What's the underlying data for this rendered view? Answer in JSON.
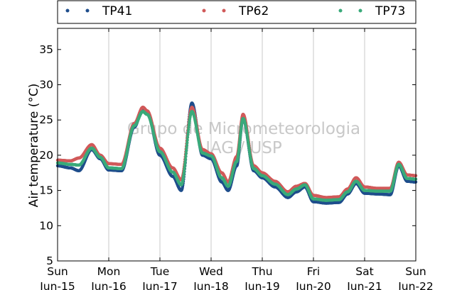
{
  "chart_data": {
    "type": "scatter",
    "title": "",
    "xlabel": "",
    "ylabel": "Air temperature (°C)",
    "ylim": [
      5,
      38
    ],
    "yticks": [
      5,
      10,
      15,
      20,
      25,
      30,
      35
    ],
    "xlim": [
      "2014-06-15 00:00",
      "2014-06-22 00:00"
    ],
    "x_tick_labels": [
      {
        "day": "Sun",
        "date": "Jun-15"
      },
      {
        "day": "Mon",
        "date": "Jun-16"
      },
      {
        "day": "Tue",
        "date": "Jun-17"
      },
      {
        "day": "Wed",
        "date": "Jun-18"
      },
      {
        "day": "Thu",
        "date": "Jun-19"
      },
      {
        "day": "Fri",
        "date": "Jun-20"
      },
      {
        "day": "Sat",
        "date": "Jun-21"
      },
      {
        "day": "Sun",
        "date": "Jun-22"
      }
    ],
    "grid": "vertical",
    "legend": "top, above plot, 3 columns",
    "watermark": [
      "Grupo de Micrometeorologia",
      "IAG / USP"
    ],
    "series": [
      {
        "name": "TP41",
        "color": "#1f4e8c",
        "x": [
          "2014-06-15 00:00",
          "2014-06-15 06:00",
          "2014-06-15 10:00",
          "2014-06-15 16:00",
          "2014-06-15 20:00",
          "2014-06-16 00:00",
          "2014-06-16 06:00",
          "2014-06-16 12:00",
          "2014-06-16 16:00",
          "2014-06-16 18:00",
          "2014-06-17 00:00",
          "2014-06-17 06:00",
          "2014-06-17 10:00",
          "2014-06-17 15:00",
          "2014-06-17 20:00",
          "2014-06-18 00:00",
          "2014-06-18 05:00",
          "2014-06-18 08:00",
          "2014-06-18 12:00",
          "2014-06-18 15:00",
          "2014-06-18 20:00",
          "2014-06-19 00:00",
          "2014-06-19 06:00",
          "2014-06-19 12:00",
          "2014-06-19 16:00",
          "2014-06-19 20:00",
          "2014-06-20 00:00",
          "2014-06-20 06:00",
          "2014-06-20 12:00",
          "2014-06-20 16:00",
          "2014-06-20 20:00",
          "2014-06-21 00:00",
          "2014-06-21 06:00",
          "2014-06-21 12:00",
          "2014-06-21 16:00",
          "2014-06-21 20:00",
          "2014-06-22 00:00"
        ],
        "y": [
          18.5,
          18.2,
          17.8,
          20.8,
          19.5,
          17.9,
          17.8,
          24.0,
          26.6,
          26.0,
          20.0,
          17.0,
          15.0,
          27.4,
          20.0,
          19.5,
          16.2,
          15.0,
          18.5,
          25.2,
          17.8,
          16.8,
          15.5,
          14.0,
          14.8,
          15.5,
          13.4,
          13.2,
          13.3,
          14.5,
          16.0,
          14.6,
          14.5,
          14.4,
          18.5,
          16.3,
          16.2
        ]
      },
      {
        "name": "TP62",
        "color": "#d15a5a",
        "x": [
          "2014-06-15 00:00",
          "2014-06-15 06:00",
          "2014-06-15 10:00",
          "2014-06-15 16:00",
          "2014-06-15 20:00",
          "2014-06-16 00:00",
          "2014-06-16 06:00",
          "2014-06-16 12:00",
          "2014-06-16 16:00",
          "2014-06-16 18:00",
          "2014-06-17 00:00",
          "2014-06-17 06:00",
          "2014-06-17 10:00",
          "2014-06-17 15:00",
          "2014-06-17 20:00",
          "2014-06-18 00:00",
          "2014-06-18 05:00",
          "2014-06-18 08:00",
          "2014-06-18 12:00",
          "2014-06-18 15:00",
          "2014-06-18 20:00",
          "2014-06-19 00:00",
          "2014-06-19 06:00",
          "2014-06-19 12:00",
          "2014-06-19 16:00",
          "2014-06-19 20:00",
          "2014-06-20 00:00",
          "2014-06-20 06:00",
          "2014-06-20 12:00",
          "2014-06-20 16:00",
          "2014-06-20 20:00",
          "2014-06-21 00:00",
          "2014-06-21 06:00",
          "2014-06-21 12:00",
          "2014-06-21 16:00",
          "2014-06-21 20:00",
          "2014-06-22 00:00"
        ],
        "y": [
          19.3,
          19.2,
          19.6,
          21.5,
          20.0,
          18.8,
          18.7,
          24.5,
          26.8,
          26.3,
          21.0,
          18.2,
          16.5,
          26.8,
          20.8,
          20.2,
          17.5,
          16.2,
          19.8,
          25.8,
          18.5,
          17.5,
          16.3,
          14.8,
          15.6,
          16.0,
          14.3,
          14.0,
          14.1,
          15.2,
          16.8,
          15.5,
          15.3,
          15.3,
          19.0,
          17.2,
          17.1
        ]
      },
      {
        "name": "TP73",
        "color": "#3aaa7a",
        "x": [
          "2014-06-15 00:00",
          "2014-06-15 06:00",
          "2014-06-15 10:00",
          "2014-06-15 16:00",
          "2014-06-15 20:00",
          "2014-06-16 00:00",
          "2014-06-16 06:00",
          "2014-06-16 12:00",
          "2014-06-16 16:00",
          "2014-06-16 18:00",
          "2014-06-17 00:00",
          "2014-06-17 06:00",
          "2014-06-17 10:00",
          "2014-06-17 15:00",
          "2014-06-17 20:00",
          "2014-06-18 00:00",
          "2014-06-18 05:00",
          "2014-06-18 08:00",
          "2014-06-18 12:00",
          "2014-06-18 15:00",
          "2014-06-18 20:00",
          "2014-06-19 00:00",
          "2014-06-19 06:00",
          "2014-06-19 12:00",
          "2014-06-19 16:00",
          "2014-06-19 20:00",
          "2014-06-20 00:00",
          "2014-06-20 06:00",
          "2014-06-20 12:00",
          "2014-06-20 16:00",
          "2014-06-20 20:00",
          "2014-06-21 00:00",
          "2014-06-21 06:00",
          "2014-06-21 12:00",
          "2014-06-21 16:00",
          "2014-06-21 20:00",
          "2014-06-22 00:00"
        ],
        "y": [
          18.9,
          18.7,
          18.6,
          21.0,
          19.7,
          18.2,
          18.1,
          24.2,
          26.2,
          25.8,
          20.5,
          17.6,
          15.8,
          26.2,
          20.3,
          19.9,
          16.8,
          15.6,
          19.1,
          25.2,
          18.1,
          17.1,
          15.9,
          14.4,
          15.2,
          15.8,
          13.8,
          13.6,
          13.7,
          14.8,
          16.3,
          15.0,
          14.9,
          14.9,
          18.7,
          16.7,
          16.6
        ]
      }
    ]
  }
}
